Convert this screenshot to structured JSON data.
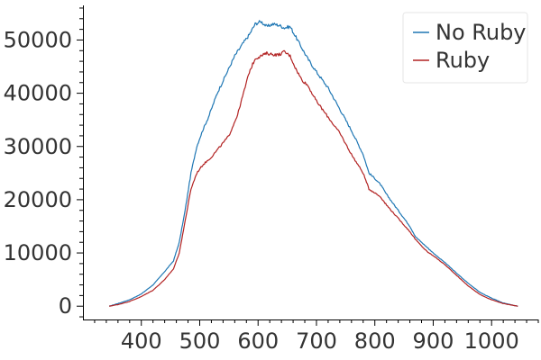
{
  "chart_data": {
    "type": "line",
    "title": "",
    "xlabel": "",
    "ylabel": "",
    "xlim": [
      300,
      1080
    ],
    "ylim": [
      -2500,
      56500
    ],
    "x_ticks": [
      400,
      500,
      600,
      700,
      800,
      900,
      1000
    ],
    "y_ticks": [
      0,
      10000,
      20000,
      30000,
      40000,
      50000
    ],
    "x_tick_labels": [
      "400",
      "500",
      "600",
      "700",
      "800",
      "900",
      "1000"
    ],
    "y_tick_labels": [
      "0",
      "10000",
      "20000",
      "30000",
      "40000",
      "50000"
    ],
    "grid": false,
    "legend_position": "top-right",
    "series": [
      {
        "name": "No Ruby",
        "color": "#1f77b4",
        "x": [
          345,
          360,
          380,
          400,
          420,
          440,
          455,
          465,
          475,
          485,
          495,
          505,
          515,
          530,
          545,
          560,
          575,
          585,
          595,
          605,
          615,
          625,
          635,
          645,
          655,
          665,
          675,
          685,
          700,
          720,
          740,
          760,
          780,
          790,
          800,
          810,
          820,
          840,
          860,
          870,
          880,
          890,
          900,
          920,
          940,
          960,
          980,
          1000,
          1020,
          1040,
          1045
        ],
        "y": [
          0,
          500,
          1200,
          2300,
          4000,
          6500,
          8500,
          12000,
          18000,
          25000,
          30000,
          33000,
          35500,
          40000,
          43500,
          47000,
          49500,
          51000,
          53000,
          53500,
          52500,
          53000,
          52800,
          52300,
          52500,
          50500,
          48500,
          46500,
          44000,
          41000,
          37000,
          33000,
          28500,
          25000,
          24000,
          22800,
          21000,
          18000,
          15000,
          13000,
          12000,
          11000,
          10000,
          8200,
          6200,
          4300,
          2600,
          1500,
          600,
          100,
          0
        ]
      },
      {
        "name": "Ruby",
        "color": "#b22222",
        "x": [
          345,
          360,
          380,
          400,
          420,
          440,
          455,
          465,
          475,
          485,
          495,
          505,
          520,
          535,
          550,
          565,
          575,
          585,
          595,
          605,
          615,
          625,
          635,
          645,
          655,
          665,
          675,
          685,
          700,
          720,
          740,
          760,
          780,
          790,
          800,
          810,
          820,
          840,
          860,
          870,
          880,
          890,
          900,
          920,
          940,
          960,
          980,
          1000,
          1020,
          1040,
          1045
        ],
        "y": [
          0,
          300,
          900,
          1800,
          3000,
          5000,
          7000,
          10000,
          16000,
          22000,
          25000,
          26500,
          28000,
          30000,
          32000,
          36000,
          40000,
          44000,
          46500,
          47000,
          47500,
          47300,
          47200,
          47800,
          47000,
          44500,
          42500,
          41500,
          38500,
          35500,
          32500,
          28500,
          25000,
          22000,
          21300,
          20500,
          19000,
          16500,
          14000,
          12500,
          11300,
          10200,
          9500,
          7800,
          5800,
          3800,
          2200,
          1200,
          500,
          100,
          0
        ]
      }
    ]
  }
}
